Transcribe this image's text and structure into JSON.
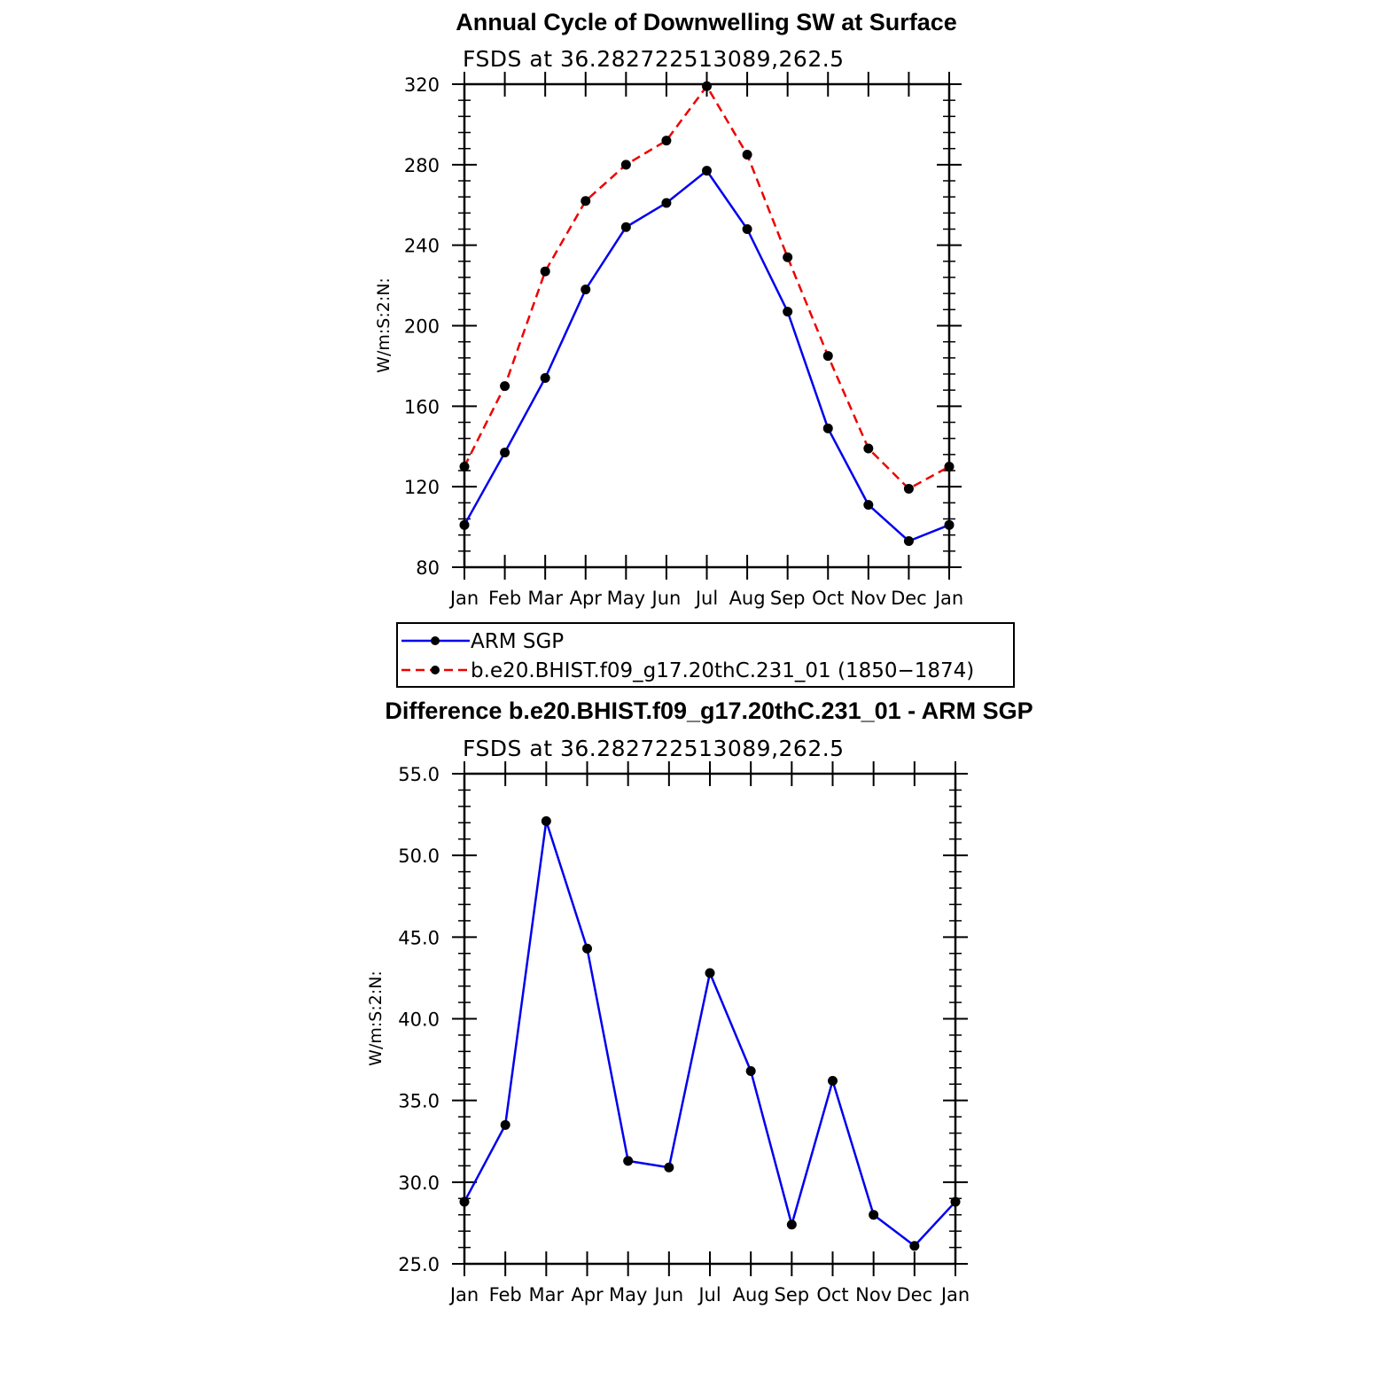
{
  "chart_data": [
    {
      "type": "line",
      "title": "Annual Cycle of Downwelling SW at Surface",
      "subtitle": "FSDS at 36.282722513089,262.5",
      "xlabel": "",
      "ylabel": "W/m:S:2:N:",
      "categories": [
        "Jan",
        "Feb",
        "Mar",
        "Apr",
        "May",
        "Jun",
        "Jul",
        "Aug",
        "Sep",
        "Oct",
        "Nov",
        "Dec",
        "Jan"
      ],
      "ylim": [
        80,
        320
      ],
      "yticks": [
        "80",
        "120",
        "160",
        "200",
        "240",
        "280",
        "320"
      ],
      "grid": false,
      "legend_position": "below",
      "series": [
        {
          "name": "ARM SGP",
          "color": "#0000ee",
          "dash": "solid",
          "values": [
            101,
            137,
            174,
            218,
            249,
            261,
            277,
            248,
            207,
            149,
            111,
            93,
            101
          ]
        },
        {
          "name": "b.e20.BHIST.f09_g17.20thC.231_01 (1850−1874)",
          "color": "#ee0000",
          "dash": "dashed",
          "values": [
            130,
            170,
            227,
            262,
            280,
            292,
            319,
            285,
            234,
            185,
            139,
            119,
            130
          ]
        }
      ]
    },
    {
      "type": "line",
      "title": "Difference b.e20.BHIST.f09_g17.20thC.231_01 - ARM SGP",
      "subtitle": "FSDS at 36.282722513089,262.5",
      "xlabel": "",
      "ylabel": "W/m:S:2:N:",
      "categories": [
        "Jan",
        "Feb",
        "Mar",
        "Apr",
        "May",
        "Jun",
        "Jul",
        "Aug",
        "Sep",
        "Oct",
        "Nov",
        "Dec",
        "Jan"
      ],
      "ylim": [
        25,
        55
      ],
      "yticks": [
        "25.0",
        "30.0",
        "35.0",
        "40.0",
        "45.0",
        "50.0",
        "55.0"
      ],
      "grid": false,
      "series": [
        {
          "color": "#0000ee",
          "dash": "solid",
          "values": [
            28.8,
            33.5,
            52.1,
            44.3,
            31.3,
            30.9,
            42.8,
            36.8,
            27.4,
            36.2,
            28.0,
            26.1,
            28.8
          ]
        }
      ]
    }
  ]
}
